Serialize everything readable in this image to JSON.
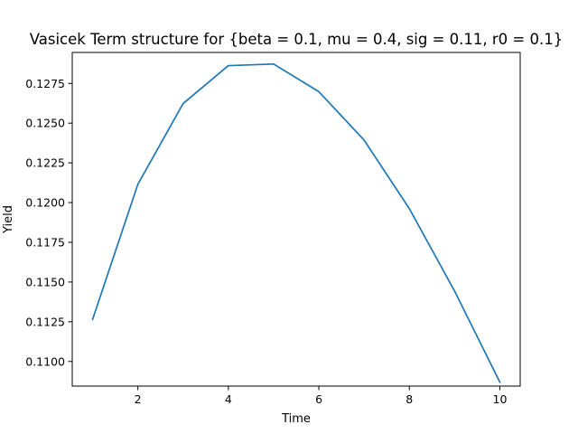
{
  "chart_data": {
    "type": "line",
    "title": "Vasicek Term structure for {beta = 0.1, mu = 0.4, sig = 0.11, r0 = 0.1}",
    "xlabel": "Time",
    "ylabel": "Yield",
    "x": [
      1,
      2,
      3,
      4,
      5,
      6,
      7,
      8,
      9,
      10
    ],
    "series": [
      {
        "values": [
          0.11265,
          0.12115,
          0.12623,
          0.12862,
          0.12872,
          0.12698,
          0.12393,
          0.11962,
          0.11443,
          0.1087
        ],
        "color": "#1f77b4"
      }
    ],
    "xlim": [
      0.55,
      10.45
    ],
    "ylim": [
      0.10845,
      0.12945
    ],
    "xticks": [
      2,
      4,
      6,
      8,
      10
    ],
    "xtick_labels": [
      "2",
      "4",
      "6",
      "8",
      "10"
    ],
    "yticks": [
      0.11,
      0.1125,
      0.115,
      0.1175,
      0.12,
      0.1225,
      0.125,
      0.1275
    ],
    "ytick_labels": [
      "0.1100",
      "0.1125",
      "0.1150",
      "0.1175",
      "0.1200",
      "0.1225",
      "0.1250",
      "0.1275"
    ],
    "grid": false,
    "legend": "none"
  }
}
